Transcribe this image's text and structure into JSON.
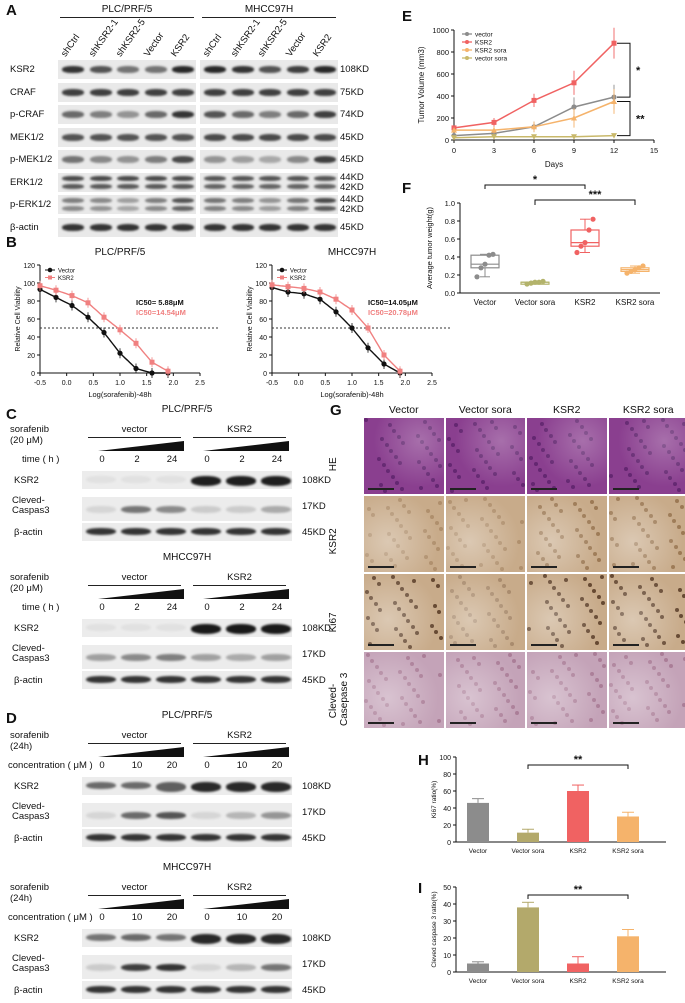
{
  "panelA": {
    "letter": "A",
    "groups": [
      "PLC/PRF/5",
      "MHCC97H"
    ],
    "lanes": [
      "shCtrl",
      "shKSR2-1",
      "shKSR2-5",
      "Vector",
      "KSR2"
    ],
    "rows": [
      {
        "label": "KSR2",
        "size": "108KD"
      },
      {
        "label": "CRAF",
        "size": "75KD"
      },
      {
        "label": "p-CRAF",
        "size": "74KD"
      },
      {
        "label": "MEK1/2",
        "size": "45KD"
      },
      {
        "label": "p-MEK1/2",
        "size": "45KD"
      },
      {
        "label": "ERK1/2",
        "size": "44KD"
      },
      {
        "label": "p-ERK1/2",
        "size": "44KD"
      },
      {
        "label": "β-actin",
        "size": "45KD"
      }
    ],
    "extra_sizes": [
      "42KD",
      "42KD"
    ]
  },
  "panelB": {
    "letter": "B",
    "plots": [
      {
        "title": "PLC/PRF/5",
        "ic50_vector": "IC50= 5.88μM",
        "ic50_ksr2": "IC50=14.54μM"
      },
      {
        "title": "MHCC97H",
        "ic50_vector": "IC50=14.05μM",
        "ic50_ksr2": "IC50=20.78μM"
      }
    ],
    "legend": [
      "Vector",
      "KSR2"
    ],
    "ylabel": "Relative Cell Viability",
    "xlabel": "Log(sorafenib)-48h",
    "yticks": [
      "0",
      "20",
      "40",
      "60",
      "80",
      "100",
      "120"
    ],
    "xticks": [
      "-0.5",
      "0.0",
      "0.5",
      "1.0",
      "1.5",
      "2.0",
      "2.5"
    ]
  },
  "panelC": {
    "letter": "C",
    "blocks": [
      {
        "title": "PLC/PRF/5",
        "treatment": "sorafenib\n(20 μM)",
        "time_label": "time ( h )",
        "groups": [
          "vector",
          "KSR2"
        ],
        "times": [
          "0",
          "2",
          "24",
          "0",
          "2",
          "24"
        ],
        "rows": [
          {
            "label": "KSR2",
            "size": "108KD"
          },
          {
            "label": "Cleved-\nCaspas3",
            "size": "17KD"
          },
          {
            "label": "β-actin",
            "size": "45KD"
          }
        ]
      },
      {
        "title": "MHCC97H",
        "treatment": "sorafenib\n(20 μM)",
        "time_label": "time ( h )",
        "groups": [
          "vector",
          "KSR2"
        ],
        "times": [
          "0",
          "2",
          "24",
          "0",
          "2",
          "24"
        ],
        "rows": [
          {
            "label": "KSR2",
            "size": "108KD"
          },
          {
            "label": "Cleved-\nCaspas3",
            "size": "17KD"
          },
          {
            "label": "β-actin",
            "size": "45KD"
          }
        ]
      }
    ]
  },
  "panelD": {
    "letter": "D",
    "blocks": [
      {
        "title": "PLC/PRF/5",
        "treatment": "sorafenib\n(24h)",
        "conc_label": "concentration ( μM )",
        "groups": [
          "vector",
          "KSR2"
        ],
        "concs": [
          "0",
          "10",
          "20",
          "0",
          "10",
          "20"
        ],
        "rows": [
          {
            "label": "KSR2",
            "size": "108KD"
          },
          {
            "label": "Cleved-\nCaspas3",
            "size": "17KD"
          },
          {
            "label": "β-actin",
            "size": "45KD"
          }
        ]
      },
      {
        "title": "MHCC97H",
        "treatment": "sorafenib\n(24h)",
        "conc_label": "concentration ( μM )",
        "groups": [
          "vector",
          "KSR2"
        ],
        "concs": [
          "0",
          "10",
          "20",
          "0",
          "10",
          "20"
        ],
        "rows": [
          {
            "label": "KSR2",
            "size": "108KD"
          },
          {
            "label": "Cleved-\nCaspas3",
            "size": "17KD"
          },
          {
            "label": "β-actin",
            "size": "45KD"
          }
        ]
      }
    ]
  },
  "panelE": {
    "letter": "E"
  },
  "panelF": {
    "letter": "F"
  },
  "panelG": {
    "letter": "G",
    "columns": [
      "Vector",
      "Vector sora",
      "KSR2",
      "KSR2 sora"
    ],
    "rows": [
      "HE",
      "KSR2",
      "Ki67",
      "Cleved-\nCasepase 3"
    ],
    "colors": {
      "he": "#8a3f8f",
      "ihc": "#c8ab8a",
      "casp": "#c4a3b8"
    }
  },
  "panelH": {
    "letter": "H"
  },
  "panelI": {
    "letter": "I"
  },
  "chart_data": [
    {
      "id": "B-PLC",
      "type": "scatter",
      "title": "PLC/PRF/5",
      "xlabel": "Log(sorafenib)-48h",
      "ylabel": "Relative Cell Viability",
      "xlim": [
        -0.5,
        2.5
      ],
      "ylim": [
        0,
        120
      ],
      "series": [
        {
          "name": "Vector",
          "color": "#111111",
          "x": [
            -0.5,
            -0.2,
            0.1,
            0.4,
            0.7,
            1.0,
            1.3,
            1.6,
            1.9
          ],
          "y": [
            93,
            84,
            75,
            62,
            45,
            22,
            5,
            0,
            0
          ]
        },
        {
          "name": "KSR2",
          "color": "#f08080",
          "x": [
            -0.5,
            -0.2,
            0.1,
            0.4,
            0.7,
            1.0,
            1.3,
            1.6,
            1.9
          ],
          "y": [
            97,
            92,
            86,
            78,
            62,
            48,
            33,
            12,
            2
          ]
        }
      ]
    },
    {
      "id": "B-MHCC",
      "type": "scatter",
      "title": "MHCC97H",
      "xlabel": "Log(sorafenib)-48h",
      "ylabel": "Relative Cell Viability",
      "xlim": [
        -0.5,
        2.5
      ],
      "ylim": [
        0,
        120
      ],
      "series": [
        {
          "name": "Vector",
          "color": "#111111",
          "x": [
            -0.5,
            -0.2,
            0.1,
            0.4,
            0.7,
            1.0,
            1.3,
            1.6,
            1.9
          ],
          "y": [
            95,
            90,
            88,
            82,
            68,
            50,
            28,
            10,
            0
          ]
        },
        {
          "name": "KSR2",
          "color": "#f08080",
          "x": [
            -0.5,
            -0.2,
            0.1,
            0.4,
            0.7,
            1.0,
            1.3,
            1.6,
            1.9
          ],
          "y": [
            98,
            96,
            94,
            90,
            82,
            70,
            50,
            20,
            2
          ]
        }
      ]
    },
    {
      "id": "E",
      "type": "line",
      "xlabel": "Days",
      "ylabel": "Tumor Volume (mm3)",
      "xlim": [
        0,
        15
      ],
      "ylim": [
        0,
        1000
      ],
      "xticks": [
        0,
        3,
        6,
        9,
        12,
        15
      ],
      "yticks": [
        0,
        200,
        400,
        600,
        800,
        1000
      ],
      "x": [
        0,
        3,
        6,
        9,
        12
      ],
      "series": [
        {
          "name": "vector",
          "color": "#8c8c8c",
          "values": [
            40,
            60,
            120,
            300,
            390
          ]
        },
        {
          "name": "KSR2",
          "color": "#f06262",
          "values": [
            110,
            160,
            360,
            520,
            880
          ]
        },
        {
          "name": "KSR2 sora",
          "color": "#f5b36b",
          "values": [
            90,
            90,
            120,
            200,
            350
          ]
        },
        {
          "name": "vector sora",
          "color": "#c9b96b",
          "values": [
            20,
            30,
            30,
            30,
            40
          ]
        }
      ],
      "annotations": [
        "*",
        "**"
      ]
    },
    {
      "id": "F",
      "type": "box",
      "ylabel": "Average tumor weight(g)",
      "ylim": [
        0.0,
        1.0
      ],
      "yticks": [
        "0.0",
        "0.2",
        "0.4",
        "0.6",
        "0.8",
        "1.0"
      ],
      "categories": [
        "Vector",
        "Vector sora",
        "KSR2",
        "KSR2 sora"
      ],
      "colors": [
        "#8c8c8c",
        "#b3b36b",
        "#f06262",
        "#f5b36b"
      ],
      "points": [
        [
          0.18,
          0.28,
          0.32,
          0.42,
          0.43
        ],
        [
          0.1,
          0.11,
          0.12,
          0.12,
          0.13
        ],
        [
          0.45,
          0.52,
          0.56,
          0.7,
          0.82
        ],
        [
          0.22,
          0.24,
          0.26,
          0.28,
          0.3
        ]
      ],
      "annotations": [
        "*",
        "***"
      ]
    },
    {
      "id": "H",
      "type": "bar",
      "ylabel": "Ki67 ratio(%)",
      "ylim": [
        0,
        100
      ],
      "yticks": [
        "0",
        "20",
        "40",
        "60",
        "80",
        "100"
      ],
      "categories": [
        "Vector",
        "Vector sora",
        "KSR2",
        "KSR2 sora"
      ],
      "values": [
        46,
        11,
        60,
        30
      ],
      "errors": [
        5,
        4,
        7,
        5
      ],
      "colors": [
        "#8c8c8c",
        "#b3a96b",
        "#f06262",
        "#f5b36b"
      ],
      "annotation": "**"
    },
    {
      "id": "I",
      "type": "bar",
      "ylabel": "Cleved caspase 3 ratio(%)",
      "ylim": [
        0,
        50
      ],
      "yticks": [
        "0",
        "10",
        "20",
        "30",
        "40",
        "50"
      ],
      "categories": [
        "Vector",
        "Vector sora",
        "KSR2",
        "KSR2 sora"
      ],
      "values": [
        5,
        38,
        5,
        21
      ],
      "errors": [
        1,
        3,
        4,
        4
      ],
      "colors": [
        "#8c8c8c",
        "#b3a96b",
        "#f06262",
        "#f5b36b"
      ],
      "annotation": "**"
    }
  ]
}
